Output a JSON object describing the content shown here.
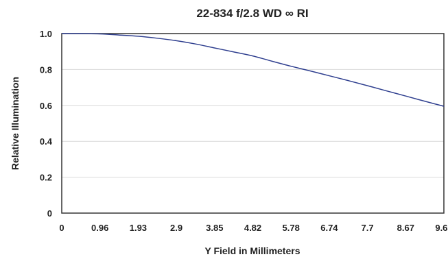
{
  "chart_data": {
    "type": "line",
    "title": "22-834 f/2.8  WD ∞ RI",
    "xlabel": "Y Field in Millimeters",
    "ylabel": "Relative Illumination",
    "xlim": [
      0,
      9.63
    ],
    "ylim": [
      0,
      1.0
    ],
    "x_ticks": [
      "0",
      "0.96",
      "1.93",
      "2.9",
      "3.85",
      "4.82",
      "5.78",
      "6.74",
      "7.7",
      "8.67",
      "9.63"
    ],
    "y_ticks": [
      "0",
      "0.2",
      "0.4",
      "0.6",
      "0.8",
      "1.0"
    ],
    "grid": "horizontal",
    "series": [
      {
        "color": "#2f3f8f",
        "x": [
          0,
          0.48,
          0.96,
          1.44,
          1.93,
          2.41,
          2.9,
          3.37,
          3.85,
          4.33,
          4.82,
          5.3,
          5.78,
          6.26,
          6.74,
          7.22,
          7.7,
          8.18,
          8.67,
          9.15,
          9.63
        ],
        "y": [
          1.0,
          1.0,
          0.998,
          0.992,
          0.985,
          0.974,
          0.96,
          0.942,
          0.92,
          0.898,
          0.875,
          0.846,
          0.818,
          0.792,
          0.765,
          0.738,
          0.71,
          0.681,
          0.652,
          0.623,
          0.595
        ]
      }
    ]
  }
}
